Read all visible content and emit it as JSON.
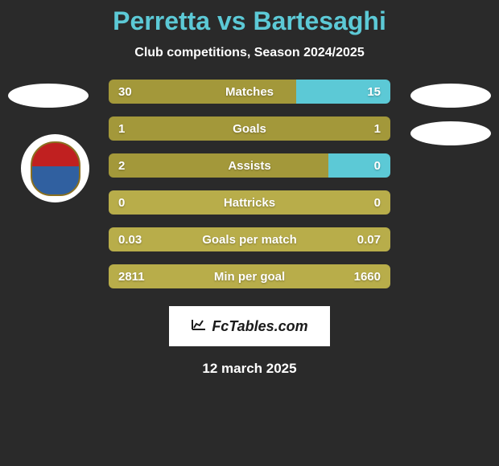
{
  "title": "Perretta vs Bartesaghi",
  "subtitle": "Club competitions, Season 2024/2025",
  "date": "12 march 2025",
  "logo_text": "FcTables.com",
  "colors": {
    "left_bar": "#a3983a",
    "right_bar": "#5cc9d6",
    "neutral": "#b8ad4a",
    "title": "#5cc9d6",
    "background": "#2a2a2a"
  },
  "stats": [
    {
      "label": "Matches",
      "left_value": "30",
      "right_value": "15",
      "left_pct": 66.7,
      "right_pct": 33.3,
      "left_color": "#a3983a",
      "right_color": "#5cc9d6"
    },
    {
      "label": "Goals",
      "left_value": "1",
      "right_value": "1",
      "left_pct": 50,
      "right_pct": 50,
      "left_color": "#a3983a",
      "right_color": "#a3983a"
    },
    {
      "label": "Assists",
      "left_value": "2",
      "right_value": "0",
      "left_pct": 78,
      "right_pct": 22,
      "left_color": "#a3983a",
      "right_color": "#5cc9d6"
    },
    {
      "label": "Hattricks",
      "left_value": "0",
      "right_value": "0",
      "left_pct": 50,
      "right_pct": 50,
      "left_color": "#b8ad4a",
      "right_color": "#b8ad4a"
    },
    {
      "label": "Goals per match",
      "left_value": "0.03",
      "right_value": "0.07",
      "left_pct": 50,
      "right_pct": 50,
      "left_color": "#b8ad4a",
      "right_color": "#b8ad4a"
    },
    {
      "label": "Min per goal",
      "left_value": "2811",
      "right_value": "1660",
      "left_pct": 50,
      "right_pct": 50,
      "left_color": "#b8ad4a",
      "right_color": "#b8ad4a"
    }
  ]
}
